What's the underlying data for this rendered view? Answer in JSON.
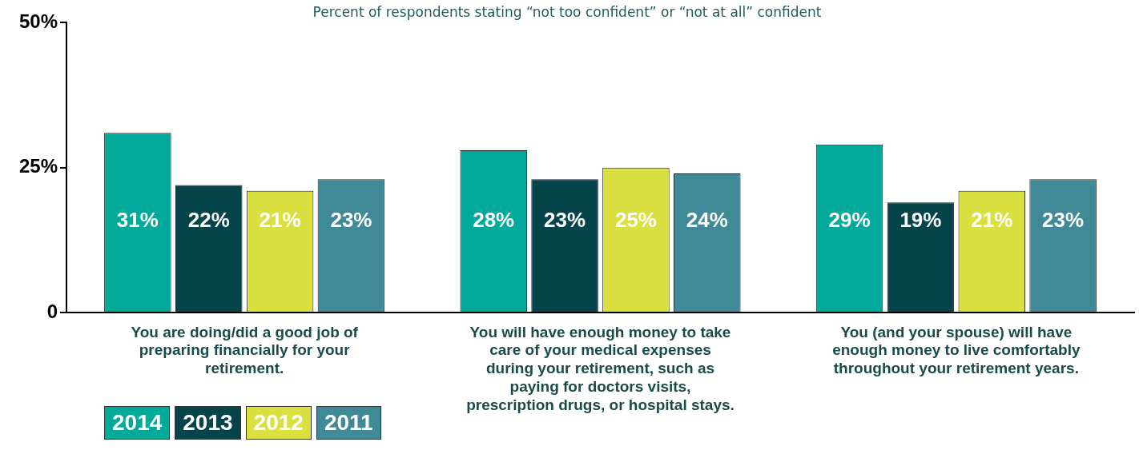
{
  "chart_data": {
    "type": "bar",
    "title": "Percent of respondents stating “not too confident” or “not at all” confident",
    "categories": [
      "You are doing/did a good job of preparing financially for your retirement.",
      "You will have enough money to take care of your medical expenses during your retirement, such as paying for doctors visits, prescription drugs, or hospital stays.",
      "You (and your spouse) will have enough money to live comfortably throughout your retirement years."
    ],
    "series": [
      {
        "name": "2014",
        "color": "#00a99a",
        "values": [
          31,
          28,
          29
        ],
        "value_labels": [
          "31%",
          "28%",
          "29%"
        ]
      },
      {
        "name": "2013",
        "color": "#04444a",
        "values": [
          22,
          23,
          19
        ],
        "value_labels": [
          "22%",
          "23%",
          "19%"
        ]
      },
      {
        "name": "2012",
        "color": "#d9e040",
        "values": [
          21,
          25,
          21
        ],
        "value_labels": [
          "21%",
          "25%",
          "21%"
        ]
      },
      {
        "name": "2011",
        "color": "#3f8a96",
        "values": [
          23,
          24,
          23
        ],
        "value_labels": [
          "23%",
          "24%",
          "23%"
        ]
      }
    ],
    "ylim": [
      0,
      50
    ],
    "yticks": [
      0,
      {
        "value": 25,
        "label": "25%"
      },
      {
        "value": 50,
        "label": "50%"
      }
    ],
    "legend": "bottom left"
  }
}
